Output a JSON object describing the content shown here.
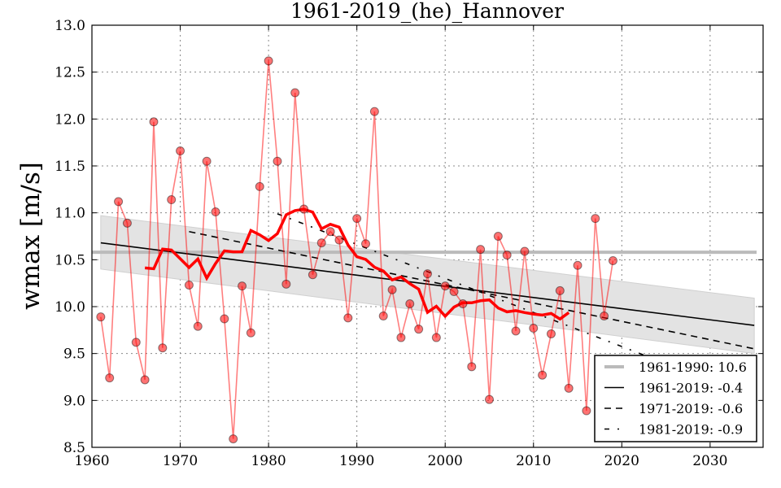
{
  "chart_data": {
    "type": "line",
    "title": "1961-2019_(he)_Hannover",
    "xlabel": "",
    "ylabel": "wmax [m/s]",
    "xlim": [
      1960,
      2036
    ],
    "ylim": [
      8.5,
      13.0
    ],
    "grid": true,
    "xticks": [
      "1960",
      "1970",
      "1980",
      "1990",
      "2000",
      "2010",
      "2020",
      "2030"
    ],
    "yticks": [
      "8.5",
      "9.0",
      "9.5",
      "10.0",
      "10.5",
      "11.0",
      "11.5",
      "12.0",
      "12.5",
      "13.0"
    ],
    "x": [
      1961,
      1962,
      1963,
      1964,
      1965,
      1966,
      1967,
      1968,
      1969,
      1970,
      1971,
      1972,
      1973,
      1974,
      1975,
      1976,
      1977,
      1978,
      1979,
      1980,
      1981,
      1982,
      1983,
      1984,
      1985,
      1986,
      1987,
      1988,
      1989,
      1990,
      1991,
      1992,
      1993,
      1994,
      1995,
      1996,
      1997,
      1998,
      1999,
      2000,
      2001,
      2002,
      2003,
      2004,
      2005,
      2006,
      2007,
      2008,
      2009,
      2010,
      2011,
      2012,
      2013,
      2014,
      2015,
      2016,
      2017,
      2018,
      2019
    ],
    "values": [
      9.89,
      9.24,
      11.12,
      10.89,
      9.62,
      9.22,
      11.97,
      9.56,
      11.14,
      11.66,
      10.23,
      9.79,
      11.55,
      11.01,
      9.87,
      8.59,
      10.22,
      9.72,
      11.28,
      12.62,
      11.55,
      10.24,
      12.28,
      11.04,
      10.34,
      10.68,
      10.8,
      10.71,
      9.88,
      10.94,
      10.67,
      12.08,
      9.9,
      10.18,
      9.67,
      10.03,
      9.76,
      10.35,
      9.67,
      10.22,
      10.16,
      10.03,
      9.36,
      10.61,
      9.01,
      10.75,
      10.55,
      9.74,
      10.59,
      9.77,
      9.27,
      9.71,
      10.17,
      9.13,
      10.44,
      8.89,
      10.94,
      9.9,
      10.49
    ],
    "running_mean_window": 11,
    "colors": {
      "points": "#ff0000",
      "running": "#ff0000",
      "baseline": "#bbbbbb",
      "band": "#e3e3e3",
      "trend": "#000000"
    },
    "baseline": {
      "label": "1961-1990: 10.6",
      "value": 10.58
    },
    "trends": [
      {
        "label": "1961-2019: -0.4",
        "style": "solid",
        "x": [
          1961,
          2035
        ],
        "y": [
          10.68,
          9.8
        ]
      },
      {
        "label": "1971-2019: -0.6",
        "style": "dashed",
        "x": [
          1971,
          2035
        ],
        "y": [
          10.8,
          9.55
        ]
      },
      {
        "label": "1981-2019: -0.9",
        "style": "dashdot",
        "x": [
          1981,
          2035
        ],
        "y": [
          10.99,
          9.03
        ]
      }
    ],
    "confidence_band": {
      "x": [
        1961,
        2035
      ],
      "upper": [
        10.97,
        10.09
      ],
      "lower": [
        10.4,
        9.5
      ]
    },
    "legend_position": "lower-right"
  }
}
